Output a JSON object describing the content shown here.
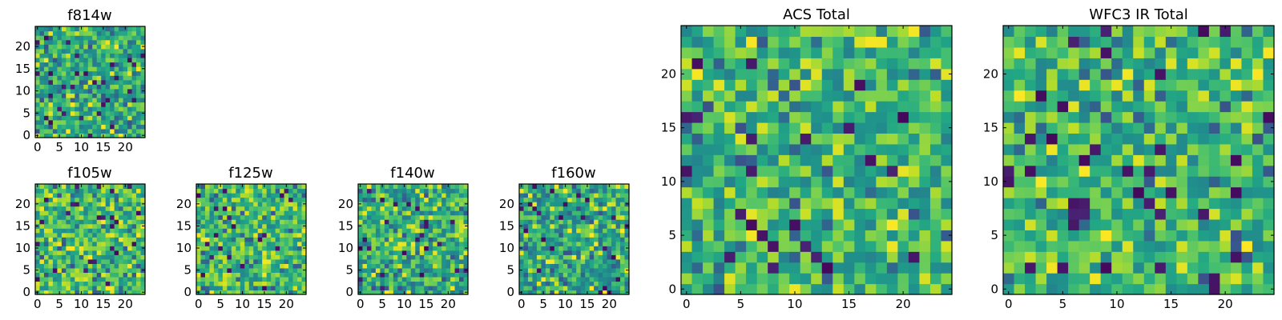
{
  "figure": {
    "description_free": true
  },
  "chart_data": [
    {
      "type": "heatmap",
      "title": "f814w",
      "grid_size": 25,
      "colormap": "viridis",
      "xticks": [
        "0",
        "5",
        "10",
        "15",
        "20"
      ],
      "yticks": [
        "0",
        "5",
        "10",
        "15",
        "20"
      ],
      "xlim": [
        0,
        25
      ],
      "ylim": [
        0,
        25
      ],
      "value_range": [
        0,
        1
      ],
      "seed": 814,
      "base": 0.62
    },
    {
      "type": "heatmap",
      "title": "f105w",
      "grid_size": 25,
      "colormap": "viridis",
      "xticks": [
        "0",
        "5",
        "10",
        "15",
        "20"
      ],
      "yticks": [
        "0",
        "5",
        "10",
        "15",
        "20"
      ],
      "xlim": [
        0,
        25
      ],
      "ylim": [
        0,
        25
      ],
      "value_range": [
        0,
        1
      ],
      "seed": 105,
      "base": 0.68
    },
    {
      "type": "heatmap",
      "title": "f125w",
      "grid_size": 25,
      "colormap": "viridis",
      "xticks": [
        "0",
        "5",
        "10",
        "15",
        "20"
      ],
      "yticks": [
        "0",
        "5",
        "10",
        "15",
        "20"
      ],
      "xlim": [
        0,
        25
      ],
      "ylim": [
        0,
        25
      ],
      "value_range": [
        0,
        1
      ],
      "seed": 125,
      "base": 0.68
    },
    {
      "type": "heatmap",
      "title": "f140w",
      "grid_size": 25,
      "colormap": "viridis",
      "xticks": [
        "0",
        "5",
        "10",
        "15",
        "20"
      ],
      "yticks": [
        "0",
        "5",
        "10",
        "15",
        "20"
      ],
      "xlim": [
        0,
        25
      ],
      "ylim": [
        0,
        25
      ],
      "value_range": [
        0,
        1
      ],
      "seed": 140,
      "base": 0.62
    },
    {
      "type": "heatmap",
      "title": "f160w",
      "grid_size": 25,
      "colormap": "viridis",
      "xticks": [
        "0",
        "5",
        "10",
        "15",
        "20"
      ],
      "yticks": [
        "0",
        "5",
        "10",
        "15",
        "20"
      ],
      "xlim": [
        0,
        25
      ],
      "ylim": [
        0,
        25
      ],
      "value_range": [
        0,
        1
      ],
      "seed": 160,
      "base": 0.6
    },
    {
      "type": "heatmap",
      "title": "ACS Total",
      "grid_size": 25,
      "colormap": "viridis",
      "xticks": [
        "0",
        "5",
        "10",
        "15",
        "20"
      ],
      "yticks": [
        "0",
        "5",
        "10",
        "15",
        "20"
      ],
      "xlim": [
        0,
        25
      ],
      "ylim": [
        0,
        25
      ],
      "value_range": [
        0,
        1
      ],
      "seed": 7,
      "base": 0.66
    },
    {
      "type": "heatmap",
      "title": "WFC3 IR Total",
      "grid_size": 25,
      "colormap": "viridis",
      "xticks": [
        "0",
        "5",
        "10",
        "15",
        "20"
      ],
      "yticks": [
        "0",
        "5",
        "10",
        "15",
        "20"
      ],
      "xlim": [
        0,
        25
      ],
      "ylim": [
        0,
        25
      ],
      "value_range": [
        0,
        1
      ],
      "seed": 3,
      "base": 0.66
    }
  ]
}
